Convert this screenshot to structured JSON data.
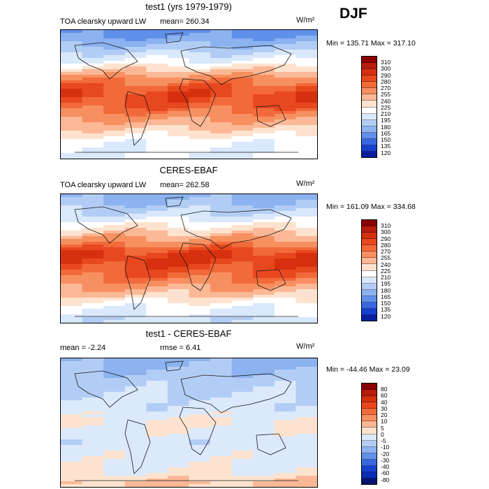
{
  "season": "DJF",
  "panels": [
    {
      "title": "test1 (yrs 1979-1979)",
      "variable": "TOA clearsky upward LW",
      "stat_text": "mean= 260.34",
      "units": "W/m²",
      "minmax": "Min = 135.71 Max = 317.10",
      "colorbar": {
        "levels": [
          "310",
          "300",
          "290",
          "280",
          "270",
          "255",
          "240",
          "225",
          "210",
          "195",
          "180",
          "165",
          "150",
          "135",
          "120"
        ],
        "colors": [
          "#8b0000",
          "#b71c0c",
          "#d6300f",
          "#e8481e",
          "#f26a3a",
          "#f79060",
          "#fbb896",
          "#fde3cf",
          "#ffffff",
          "#d9e8fb",
          "#b2cdf5",
          "#8cb2ef",
          "#6190ea",
          "#3867e0",
          "#1640cf",
          "#0b1f9e"
        ]
      }
    },
    {
      "title": "CERES-EBAF",
      "variable": "TOA clearsky upward LW",
      "stat_text": "mean= 262.58",
      "units": "W/m²",
      "minmax": "Min = 161.09 Max = 334.68",
      "colorbar": {
        "levels": [
          "310",
          "300",
          "290",
          "280",
          "270",
          "255",
          "240",
          "225",
          "210",
          "195",
          "180",
          "165",
          "150",
          "135",
          "120"
        ],
        "colors": [
          "#8b0000",
          "#b71c0c",
          "#d6300f",
          "#e8481e",
          "#f26a3a",
          "#f79060",
          "#fbb896",
          "#fde3cf",
          "#ffffff",
          "#d9e8fb",
          "#b2cdf5",
          "#8cb2ef",
          "#6190ea",
          "#3867e0",
          "#1640cf",
          "#0b1f9e"
        ]
      }
    },
    {
      "title": "test1 - CERES-EBAF",
      "stat_text": "mean =  -2.24",
      "rmse_text": "rmse =   6.41",
      "units": "W/m²",
      "minmax": "Min = -44.46 Max =  23.09",
      "colorbar": {
        "levels": [
          "80",
          "60",
          "40",
          "30",
          "20",
          "10",
          "5",
          "0",
          "-5",
          "-10",
          "-20",
          "-30",
          "-40",
          "-60",
          "-80"
        ],
        "colors": [
          "#8b0000",
          "#b71c0c",
          "#d6300f",
          "#e8481e",
          "#f26a3a",
          "#f79060",
          "#fbb896",
          "#fde3cf",
          "#dbe9fb",
          "#b2cdf5",
          "#8cb2ef",
          "#6190ea",
          "#3867e0",
          "#1640cf",
          "#0b2ab5",
          "#061470"
        ]
      }
    }
  ],
  "chart_data": [
    {
      "type": "heatmap",
      "title": "test1 (yrs 1979-1979)",
      "subtitle": "TOA clearsky upward LW",
      "units": "W/m2",
      "mean": 260.34,
      "min": 135.71,
      "max": 317.1,
      "contour_levels": [
        120,
        135,
        150,
        165,
        180,
        195,
        210,
        225,
        240,
        255,
        270,
        280,
        290,
        300,
        310
      ],
      "zonal_band_approx": {
        "lat": [
          85,
          65,
          45,
          25,
          10,
          0,
          -10,
          -25,
          -45,
          -65,
          -85
        ],
        "value": [
          160,
          185,
          215,
          260,
          280,
          288,
          282,
          270,
          245,
          215,
          210
        ]
      }
    },
    {
      "type": "heatmap",
      "title": "CERES-EBAF",
      "subtitle": "TOA clearsky upward LW",
      "units": "W/m2",
      "mean": 262.58,
      "min": 161.09,
      "max": 334.68,
      "contour_levels": [
        120,
        135,
        150,
        165,
        180,
        195,
        210,
        225,
        240,
        255,
        270,
        280,
        290,
        300,
        310
      ],
      "zonal_band_approx": {
        "lat": [
          85,
          65,
          45,
          25,
          10,
          0,
          -10,
          -25,
          -45,
          -65,
          -85
        ],
        "value": [
          175,
          195,
          225,
          262,
          285,
          292,
          285,
          275,
          248,
          218,
          200
        ]
      }
    },
    {
      "type": "heatmap",
      "title": "test1 - CERES-EBAF",
      "units": "W/m2",
      "mean": -2.24,
      "rmse": 6.41,
      "min": -44.46,
      "max": 23.09,
      "contour_levels": [
        -80,
        -60,
        -40,
        -30,
        -20,
        -10,
        -5,
        0,
        5,
        10,
        20,
        30,
        40,
        60,
        80
      ],
      "zonal_band_approx": {
        "lat": [
          85,
          65,
          45,
          25,
          10,
          0,
          -10,
          -25,
          -45,
          -65,
          -85
        ],
        "value": [
          -12,
          -8,
          -6,
          -3,
          -2,
          2,
          -1,
          -3,
          -2,
          -1,
          6
        ]
      }
    }
  ]
}
